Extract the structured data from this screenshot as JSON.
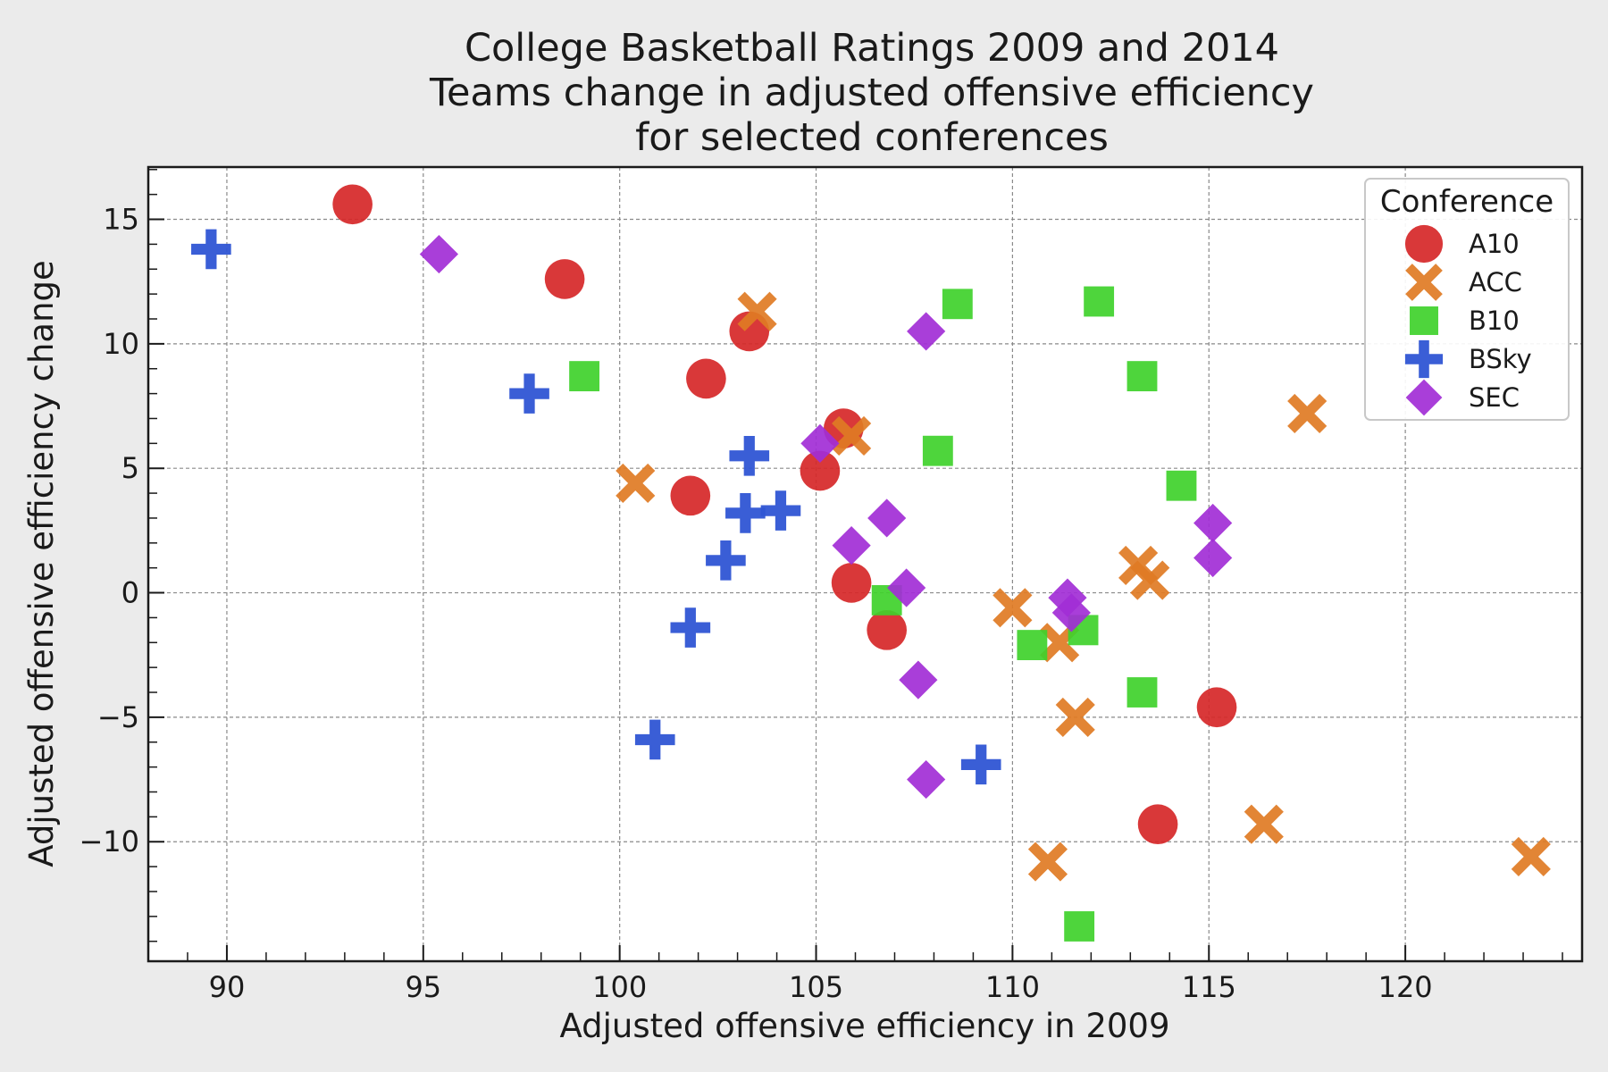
{
  "chart_data": {
    "type": "scatter",
    "title_lines": [
      "College Basketball Ratings 2009 and 2014",
      "Teams change in adjusted offensive efficiency",
      "for selected conferences"
    ],
    "xlabel": "Adjusted offensive efficiency in 2009",
    "ylabel": "Adjusted offensive efficiency change",
    "xlim": [
      88,
      124.5
    ],
    "ylim": [
      -14.8,
      17.1
    ],
    "xticks": [
      90,
      95,
      100,
      105,
      110,
      115,
      120
    ],
    "yticks": [
      -10,
      -5,
      0,
      5,
      10,
      15
    ],
    "xtick_labels": [
      "90",
      "95",
      "100",
      "105",
      "110",
      "115",
      "120"
    ],
    "ytick_labels": [
      "−10",
      "−5",
      "0",
      "5",
      "10",
      "15"
    ],
    "grid": true,
    "legend": {
      "title": "Conference",
      "position": "top-right"
    },
    "series": [
      {
        "name": "A10",
        "marker": "circle",
        "color": "#d62728",
        "points": [
          [
            93.2,
            15.6
          ],
          [
            98.6,
            12.6
          ],
          [
            103.3,
            10.5
          ],
          [
            102.2,
            8.6
          ],
          [
            105.7,
            6.6
          ],
          [
            105.1,
            4.9
          ],
          [
            101.8,
            3.9
          ],
          [
            105.9,
            0.4
          ],
          [
            106.8,
            -1.5
          ],
          [
            115.2,
            -4.6
          ],
          [
            113.7,
            -9.3
          ]
        ]
      },
      {
        "name": "ACC",
        "marker": "x",
        "color": "#e07b24",
        "points": [
          [
            103.5,
            11.3
          ],
          [
            105.9,
            6.3
          ],
          [
            100.4,
            4.4
          ],
          [
            117.5,
            7.2
          ],
          [
            113.2,
            1.1
          ],
          [
            113.5,
            0.5
          ],
          [
            110.0,
            -0.6
          ],
          [
            111.2,
            -2.0
          ],
          [
            111.6,
            -5.0
          ],
          [
            116.4,
            -9.3
          ],
          [
            110.9,
            -10.8
          ],
          [
            123.2,
            -10.6
          ]
        ]
      },
      {
        "name": "B10",
        "marker": "square",
        "color": "#3fd12b",
        "points": [
          [
            108.6,
            11.6
          ],
          [
            112.2,
            11.7
          ],
          [
            99.1,
            8.7
          ],
          [
            113.3,
            8.7
          ],
          [
            108.1,
            5.7
          ],
          [
            114.3,
            4.3
          ],
          [
            106.8,
            -0.3
          ],
          [
            111.8,
            -1.5
          ],
          [
            110.5,
            -2.1
          ],
          [
            113.3,
            -4.0
          ],
          [
            111.7,
            -13.4
          ]
        ]
      },
      {
        "name": "BSky",
        "marker": "plus",
        "color": "#2f55d4",
        "points": [
          [
            89.6,
            13.8
          ],
          [
            97.7,
            8.0
          ],
          [
            103.3,
            5.5
          ],
          [
            103.2,
            3.2
          ],
          [
            104.1,
            3.3
          ],
          [
            102.7,
            1.3
          ],
          [
            101.8,
            -1.4
          ],
          [
            100.9,
            -5.9
          ],
          [
            109.2,
            -6.9
          ]
        ]
      },
      {
        "name": "SEC",
        "marker": "diamond",
        "color": "#a22ed6",
        "points": [
          [
            95.4,
            13.6
          ],
          [
            107.8,
            10.5
          ],
          [
            105.1,
            6.0
          ],
          [
            106.8,
            3.0
          ],
          [
            105.9,
            1.9
          ],
          [
            107.3,
            0.2
          ],
          [
            115.1,
            2.8
          ],
          [
            115.1,
            1.4
          ],
          [
            111.4,
            -0.2
          ],
          [
            111.5,
            -0.8
          ],
          [
            107.6,
            -3.5
          ],
          [
            107.8,
            -7.5
          ]
        ]
      }
    ]
  }
}
